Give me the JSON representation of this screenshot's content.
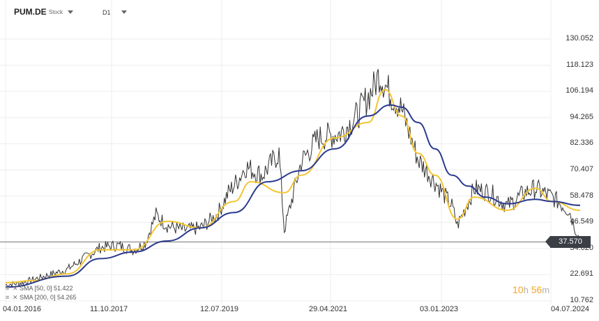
{
  "header": {
    "symbol": "PUM.DE",
    "symbol_type": "Stock",
    "timeframe": "D1"
  },
  "y_axis": {
    "ticks": [
      "130.052",
      "118.123",
      "106.194",
      "94.265",
      "82.336",
      "70.407",
      "58.478",
      "46.549",
      "34.620",
      "22.691",
      "10.762"
    ],
    "current_price": "37.570"
  },
  "x_axis": {
    "ticks": [
      "04.01.2016",
      "11.10.2017",
      "12.07.2019",
      "29.04.2021",
      "03.01.2023",
      "04.07.2024"
    ]
  },
  "legend": {
    "sma50": "SMA [50, 0] 51.422",
    "sma200": "SMA [200, 0] 54.265"
  },
  "timer": {
    "hours": "10",
    "hours_unit": "h",
    "minutes": "56",
    "minutes_unit": "m"
  },
  "colors": {
    "price": "#333333",
    "sma50": "#f2c530",
    "sma200": "#2b3a8f",
    "grid": "#eeeeee",
    "price_line": "#777777"
  },
  "chart_data": {
    "type": "line",
    "x_labels": [
      "04.01.2016",
      "11.10.2017",
      "12.07.2019",
      "29.04.2021",
      "03.01.2023",
      "04.07.2024"
    ],
    "ylim": [
      10.762,
      130.052
    ],
    "current_price": 37.57,
    "series": [
      {
        "name": "PUM.DE",
        "x": [
          "2016-01",
          "2016-04",
          "2016-08",
          "2016-12",
          "2017-03",
          "2017-06",
          "2017-09",
          "2017-12",
          "2018-02",
          "2018-04",
          "2018-06",
          "2018-09",
          "2018-12",
          "2019-03",
          "2019-05",
          "2019-07",
          "2019-08",
          "2019-11",
          "2020-02",
          "2020-03",
          "2020-06",
          "2020-09",
          "2021-01",
          "2021-04",
          "2021-07",
          "2021-08",
          "2021-10",
          "2021-12",
          "2022-03",
          "2022-06",
          "2022-09",
          "2022-10",
          "2023-01",
          "2023-04",
          "2023-07",
          "2023-10",
          "2023-12",
          "2024-03",
          "2024-06",
          "2024-08"
        ],
        "values": [
          18,
          19,
          22,
          25,
          30,
          35,
          36,
          34,
          37,
          50,
          45,
          43,
          44,
          50,
          60,
          67,
          72,
          68,
          78,
          43,
          74,
          85,
          87,
          95,
          108,
          114,
          105,
          98,
          75,
          65,
          54,
          45,
          62,
          60,
          54,
          60,
          62,
          58,
          52,
          37.57
        ]
      },
      {
        "name": "SMA [50, 0] 51.422",
        "x": [
          "2016-01",
          "2016-06",
          "2016-12",
          "2017-06",
          "2017-12",
          "2018-06",
          "2018-12",
          "2019-06",
          "2019-09",
          "2020-03",
          "2020-06",
          "2020-12",
          "2021-06",
          "2021-09",
          "2021-12",
          "2022-03",
          "2022-06",
          "2022-10",
          "2023-01",
          "2023-07",
          "2023-12",
          "2024-03",
          "2024-08"
        ],
        "values": [
          19,
          20,
          23,
          34,
          34,
          47,
          44,
          56,
          65,
          60,
          68,
          85,
          92,
          107,
          95,
          78,
          68,
          48,
          58,
          52,
          62,
          56,
          52
        ]
      },
      {
        "name": "SMA [200, 0] 54.265",
        "x": [
          "2016-01",
          "2016-12",
          "2017-06",
          "2017-12",
          "2018-06",
          "2018-12",
          "2019-06",
          "2019-12",
          "2020-06",
          "2020-12",
          "2021-06",
          "2021-10",
          "2021-12",
          "2022-03",
          "2022-06",
          "2022-09",
          "2022-12",
          "2023-03",
          "2023-07",
          "2023-12",
          "2024-03",
          "2024-08"
        ],
        "values": [
          17,
          22,
          30,
          33,
          38,
          44,
          51,
          65,
          70,
          80,
          95,
          100,
          99,
          92,
          80,
          68,
          63,
          58,
          55,
          57,
          56,
          54.265
        ]
      }
    ]
  }
}
